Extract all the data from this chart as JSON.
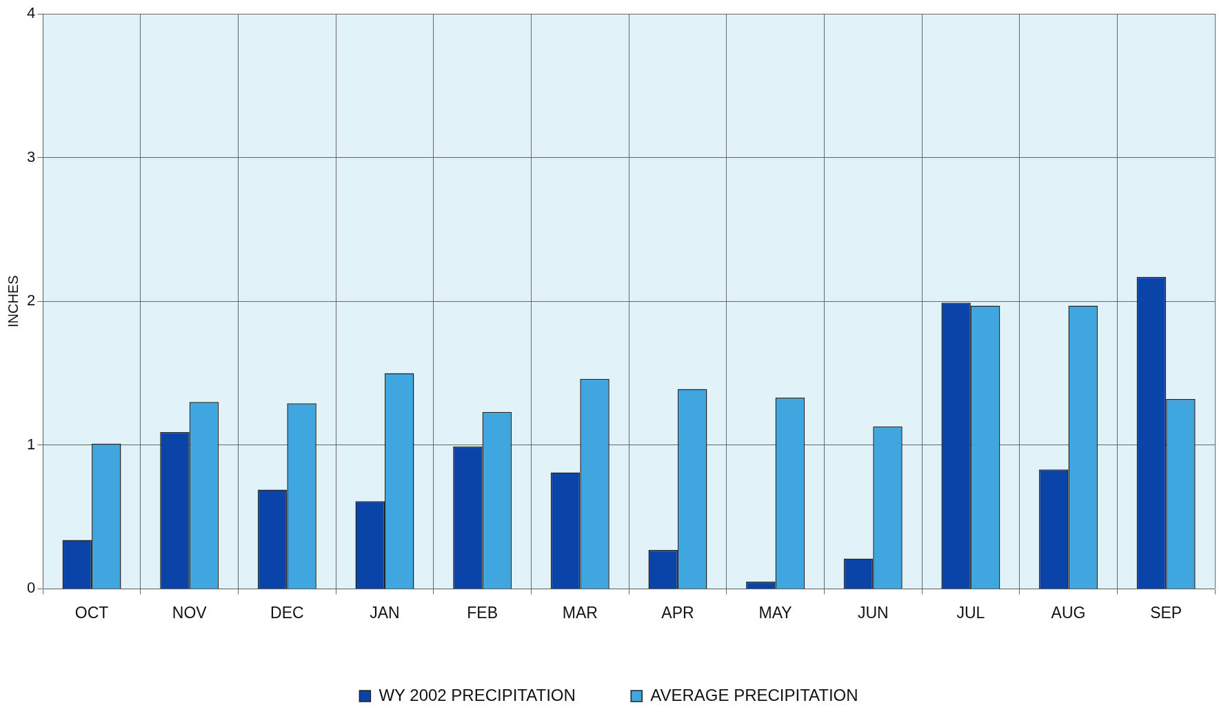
{
  "chart_data": {
    "type": "bar",
    "ylabel": "INCHES",
    "categories": [
      "OCT",
      "NOV",
      "DEC",
      "JAN",
      "FEB",
      "MAR",
      "APR",
      "MAY",
      "JUN",
      "JUL",
      "AUG",
      "SEP"
    ],
    "series": [
      {
        "name": "WY 2002 PRECIPITATION",
        "color": "#0a44a8",
        "values": [
          0.34,
          1.09,
          0.69,
          0.61,
          0.99,
          0.81,
          0.27,
          0.05,
          0.21,
          1.99,
          0.83,
          2.17
        ]
      },
      {
        "name": "AVERAGE PRECIPITATION",
        "color": "#3fa6e0",
        "values": [
          1.01,
          1.3,
          1.29,
          1.5,
          1.23,
          1.46,
          1.39,
          1.33,
          1.13,
          1.97,
          1.97,
          1.32
        ]
      }
    ],
    "ylim": [
      0,
      4
    ],
    "yticks": [
      0,
      1,
      2,
      3,
      4
    ],
    "grid": true,
    "legend": "bottom"
  }
}
